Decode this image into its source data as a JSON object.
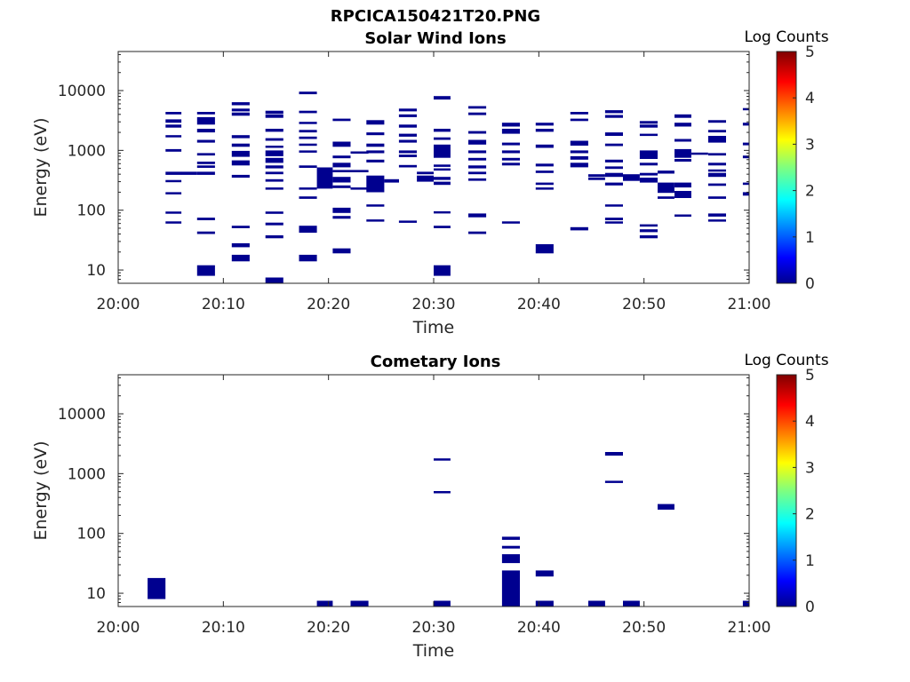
{
  "figure_title": "RPCICA150421T20.PNG",
  "chart_data": [
    {
      "type": "heatmap",
      "title": "Solar Wind Ions",
      "xlabel": "Time",
      "ylabel": "Energy (eV)",
      "x_ticks": [
        "20:00",
        "20:10",
        "20:20",
        "20:30",
        "20:40",
        "20:50",
        "21:00"
      ],
      "xlim": [
        0,
        60
      ],
      "y_scale": "log",
      "y_ticks": [
        "10",
        "100",
        "1000",
        "10000"
      ],
      "ylim": [
        6,
        45000
      ],
      "colorbar": {
        "label": "Log Counts",
        "ticks": [
          "0",
          "1",
          "2",
          "3",
          "4",
          "5"
        ],
        "range": [
          0,
          5
        ],
        "colormap": "jet"
      },
      "cell_color": "#00008f",
      "cells": [
        [
          4.5,
          6,
          4400,
          4000
        ],
        [
          4.5,
          6,
          3300,
          2900
        ],
        [
          4.5,
          6,
          2700,
          2400
        ],
        [
          4.5,
          6,
          1800,
          1650
        ],
        [
          4.5,
          6,
          1050,
          950
        ],
        [
          4.5,
          6,
          440,
          390
        ],
        [
          4.5,
          6,
          320,
          295
        ],
        [
          4.5,
          6,
          200,
          185
        ],
        [
          4.5,
          6,
          95,
          88
        ],
        [
          4.5,
          6,
          65,
          60
        ],
        [
          6,
          7.5,
          440,
          390
        ],
        [
          7.5,
          9.2,
          4400,
          4000
        ],
        [
          7.5,
          9.2,
          3600,
          2700
        ],
        [
          7.5,
          9.2,
          2300,
          2000
        ],
        [
          7.5,
          9.2,
          1500,
          1350
        ],
        [
          7.5,
          9.2,
          900,
          820
        ],
        [
          7.5,
          9.2,
          650,
          590
        ],
        [
          7.5,
          9.2,
          560,
          510
        ],
        [
          7.5,
          9.2,
          440,
          390
        ],
        [
          7.5,
          9.2,
          75,
          68
        ],
        [
          7.5,
          9.2,
          44,
          40
        ],
        [
          7.5,
          9.2,
          12,
          8
        ],
        [
          10.8,
          12.5,
          6400,
          5700
        ],
        [
          10.8,
          12.5,
          5000,
          4500
        ],
        [
          10.8,
          12.5,
          4300,
          3800
        ],
        [
          10.8,
          12.5,
          1800,
          1600
        ],
        [
          10.8,
          12.5,
          1300,
          1150
        ],
        [
          10.8,
          12.5,
          980,
          780
        ],
        [
          10.8,
          12.5,
          680,
          560
        ],
        [
          10.8,
          12.5,
          390,
          350
        ],
        [
          10.8,
          12.5,
          55,
          50
        ],
        [
          10.8,
          12.5,
          28,
          24
        ],
        [
          10.8,
          12.5,
          18,
          14
        ],
        [
          14,
          15.7,
          4600,
          4100
        ],
        [
          14,
          15.7,
          4000,
          3500
        ],
        [
          14,
          15.7,
          2300,
          2050
        ],
        [
          14,
          15.7,
          1600,
          1450
        ],
        [
          14,
          15.7,
          1200,
          1100
        ],
        [
          14,
          15.7,
          1000,
          800
        ],
        [
          14,
          15.7,
          750,
          620
        ],
        [
          14,
          15.7,
          560,
          500
        ],
        [
          14,
          15.7,
          440,
          400
        ],
        [
          14,
          15.7,
          330,
          300
        ],
        [
          14,
          15.7,
          240,
          220
        ],
        [
          14,
          15.7,
          95,
          87
        ],
        [
          14,
          15.7,
          62,
          56
        ],
        [
          14,
          15.7,
          38,
          34
        ],
        [
          14,
          15.7,
          7.5,
          6
        ],
        [
          17.2,
          18.9,
          9600,
          8700
        ],
        [
          17.2,
          18.9,
          4600,
          4200
        ],
        [
          17.2,
          18.9,
          3000,
          2750
        ],
        [
          17.2,
          18.9,
          2200,
          2000
        ],
        [
          17.2,
          18.9,
          1700,
          1550
        ],
        [
          17.2,
          18.9,
          1300,
          1200
        ],
        [
          17.2,
          18.9,
          1000,
          920
        ],
        [
          17.2,
          18.9,
          560,
          510
        ],
        [
          17.2,
          18.9,
          240,
          220
        ],
        [
          17.2,
          18.9,
          170,
          155
        ],
        [
          17.2,
          18.9,
          55,
          42
        ],
        [
          17.2,
          18.9,
          18,
          14
        ],
        [
          18.9,
          20.4,
          520,
          230
        ],
        [
          20.4,
          22.1,
          3400,
          3100
        ],
        [
          20.4,
          22.1,
          1400,
          1150
        ],
        [
          20.4,
          22.1,
          820,
          740
        ],
        [
          20.4,
          22.1,
          620,
          520
        ],
        [
          20.4,
          22.1,
          470,
          430
        ],
        [
          20.4,
          22.1,
          360,
          290
        ],
        [
          20.4,
          22.1,
          260,
          235
        ],
        [
          20.4,
          22.1,
          110,
          90
        ],
        [
          20.4,
          22.1,
          80,
          72
        ],
        [
          20.4,
          22.1,
          23,
          19
        ],
        [
          22.1,
          23.8,
          960,
          880
        ],
        [
          22.1,
          23.8,
          470,
          430
        ],
        [
          22.1,
          23.8,
          240,
          220
        ],
        [
          23.6,
          25.3,
          3200,
          2700
        ],
        [
          23.6,
          25.3,
          2000,
          1800
        ],
        [
          23.6,
          25.3,
          1300,
          1150
        ],
        [
          23.6,
          25.3,
          1000,
          900
        ],
        [
          23.6,
          25.3,
          700,
          630
        ],
        [
          23.6,
          25.3,
          380,
          200
        ],
        [
          23.6,
          25.3,
          125,
          115
        ],
        [
          23.6,
          25.3,
          70,
          65
        ],
        [
          25.3,
          26.7,
          330,
          290
        ],
        [
          26.7,
          28.4,
          5000,
          4500
        ],
        [
          26.7,
          28.4,
          4000,
          3600
        ],
        [
          26.7,
          28.4,
          2700,
          2400
        ],
        [
          26.7,
          28.4,
          1900,
          1700
        ],
        [
          26.7,
          28.4,
          1500,
          1350
        ],
        [
          26.7,
          28.4,
          1000,
          900
        ],
        [
          26.7,
          28.4,
          850,
          770
        ],
        [
          26.7,
          28.4,
          570,
          520
        ],
        [
          26.7,
          28.4,
          67,
          64
        ],
        [
          28.4,
          30,
          440,
          400
        ],
        [
          28.4,
          30,
          380,
          300
        ],
        [
          30,
          31.6,
          8100,
          7100
        ],
        [
          30,
          31.6,
          2300,
          2050
        ],
        [
          30,
          31.6,
          1650,
          1500
        ],
        [
          30,
          31.6,
          1250,
          750
        ],
        [
          30,
          31.6,
          580,
          530
        ],
        [
          30,
          31.6,
          500,
          460
        ],
        [
          30,
          31.6,
          360,
          320
        ],
        [
          30,
          31.6,
          300,
          265
        ],
        [
          30,
          31.6,
          96,
          88
        ],
        [
          30,
          31.6,
          55,
          50
        ],
        [
          30,
          31.6,
          12,
          8
        ],
        [
          33.3,
          35,
          5500,
          5000
        ],
        [
          33.3,
          35,
          4300,
          3900
        ],
        [
          33.3,
          35,
          2100,
          1900
        ],
        [
          33.3,
          35,
          1500,
          1250
        ],
        [
          33.3,
          35,
          1000,
          900
        ],
        [
          33.3,
          35,
          750,
          680
        ],
        [
          33.3,
          35,
          560,
          500
        ],
        [
          33.3,
          35,
          440,
          400
        ],
        [
          33.3,
          35,
          340,
          310
        ],
        [
          33.3,
          35,
          88,
          76
        ],
        [
          33.3,
          35,
          44,
          40
        ],
        [
          36.5,
          38.2,
          2900,
          2500
        ],
        [
          36.5,
          38.2,
          2300,
          1900
        ],
        [
          36.5,
          38.2,
          1350,
          1220
        ],
        [
          36.5,
          38.2,
          1000,
          900
        ],
        [
          36.5,
          38.2,
          750,
          680
        ],
        [
          36.5,
          38.2,
          620,
          560
        ],
        [
          36.5,
          38.2,
          65,
          60
        ],
        [
          39.7,
          41.4,
          2900,
          2600
        ],
        [
          39.7,
          41.4,
          2300,
          2050
        ],
        [
          39.7,
          41.4,
          1250,
          1100
        ],
        [
          39.7,
          41.4,
          600,
          540
        ],
        [
          39.7,
          41.4,
          460,
          420
        ],
        [
          39.7,
          41.4,
          290,
          265
        ],
        [
          39.7,
          41.4,
          240,
          220
        ],
        [
          39.7,
          41.4,
          27,
          19
        ],
        [
          43,
          44.7,
          4400,
          4000
        ],
        [
          43,
          44.7,
          3400,
          3100
        ],
        [
          43,
          44.7,
          1450,
          1200
        ],
        [
          43,
          44.7,
          1000,
          900
        ],
        [
          43,
          44.7,
          800,
          700
        ],
        [
          43,
          44.7,
          620,
          520
        ],
        [
          43,
          44.7,
          52,
          46
        ],
        [
          44.7,
          46.3,
          400,
          360
        ],
        [
          44.7,
          46.3,
          350,
          320
        ],
        [
          46.3,
          48,
          4700,
          4200
        ],
        [
          46.3,
          48,
          3900,
          3500
        ],
        [
          46.3,
          48,
          2000,
          1750
        ],
        [
          46.3,
          48,
          1300,
          1180
        ],
        [
          46.3,
          48,
          700,
          630
        ],
        [
          46.3,
          48,
          540,
          490
        ],
        [
          46.3,
          48,
          420,
          360
        ],
        [
          46.3,
          48,
          290,
          260
        ],
        [
          46.3,
          48,
          125,
          115
        ],
        [
          46.3,
          48,
          75,
          68
        ],
        [
          46.3,
          48,
          65,
          60
        ],
        [
          48,
          49.6,
          400,
          310
        ],
        [
          49.6,
          51.3,
          3100,
          2800
        ],
        [
          49.6,
          51.3,
          2700,
          2400
        ],
        [
          49.6,
          51.3,
          1900,
          1750
        ],
        [
          49.6,
          51.3,
          1000,
          720
        ],
        [
          49.6,
          51.3,
          620,
          560
        ],
        [
          49.6,
          51.3,
          420,
          380
        ],
        [
          49.6,
          51.3,
          350,
          290
        ],
        [
          49.6,
          51.3,
          58,
          53
        ],
        [
          49.6,
          51.3,
          48,
          43
        ],
        [
          49.6,
          51.3,
          38,
          34
        ],
        [
          51.3,
          52.9,
          460,
          410
        ],
        [
          51.3,
          52.9,
          290,
          195
        ],
        [
          51.3,
          52.9,
          170,
          155
        ],
        [
          52.9,
          54.5,
          4000,
          3500
        ],
        [
          52.9,
          54.5,
          2900,
          2500
        ],
        [
          52.9,
          54.5,
          1550,
          1400
        ],
        [
          52.9,
          54.5,
          1050,
          750
        ],
        [
          52.9,
          54.5,
          720,
          650
        ],
        [
          52.9,
          54.5,
          290,
          240
        ],
        [
          52.9,
          54.5,
          210,
          160
        ],
        [
          52.9,
          54.5,
          85,
          78
        ],
        [
          54.5,
          56.1,
          920,
          850
        ],
        [
          56.1,
          57.8,
          3200,
          2900
        ],
        [
          56.1,
          57.8,
          2200,
          2000
        ],
        [
          56.1,
          57.8,
          1750,
          1350
        ],
        [
          56.1,
          57.8,
          900,
          820
        ],
        [
          56.1,
          57.8,
          620,
          560
        ],
        [
          56.1,
          57.8,
          480,
          440
        ],
        [
          56.1,
          57.8,
          420,
          360
        ],
        [
          56.1,
          57.8,
          280,
          255
        ],
        [
          56.1,
          57.8,
          170,
          155
        ],
        [
          56.1,
          57.8,
          88,
          78
        ],
        [
          56.1,
          57.8,
          70,
          65
        ],
        [
          59.4,
          60.5,
          5100,
          4700
        ],
        [
          59.4,
          60.5,
          2900,
          2600
        ],
        [
          59.4,
          60.5,
          1350,
          1220
        ],
        [
          59.4,
          60.5,
          820,
          740
        ],
        [
          59.4,
          60.5,
          290,
          265
        ],
        [
          59.4,
          60.5,
          200,
          175
        ]
      ]
    },
    {
      "type": "heatmap",
      "title": "Cometary Ions",
      "xlabel": "Time",
      "ylabel": "Energy (eV)",
      "x_ticks": [
        "20:00",
        "20:10",
        "20:20",
        "20:30",
        "20:40",
        "20:50",
        "21:00"
      ],
      "xlim": [
        0,
        60
      ],
      "y_scale": "log",
      "y_ticks": [
        "10",
        "100",
        "1000",
        "10000"
      ],
      "ylim": [
        6,
        45000
      ],
      "colorbar": {
        "label": "Log Counts",
        "ticks": [
          "0",
          "1",
          "2",
          "3",
          "4",
          "5"
        ],
        "range": [
          0,
          5
        ],
        "colormap": "jet"
      },
      "cell_color": "#00008f",
      "cells": [
        [
          2.8,
          4.5,
          18,
          8
        ],
        [
          18.9,
          20.4,
          7.5,
          6
        ],
        [
          22.1,
          23.8,
          7.5,
          6
        ],
        [
          30,
          31.6,
          1800,
          1650
        ],
        [
          30,
          31.6,
          510,
          470
        ],
        [
          30,
          31.6,
          7.5,
          6
        ],
        [
          36.5,
          38.2,
          88,
          78
        ],
        [
          36.5,
          38.2,
          62,
          56
        ],
        [
          36.5,
          38.2,
          45,
          32
        ],
        [
          36.5,
          38.2,
          24,
          6
        ],
        [
          39.7,
          41.4,
          24,
          19
        ],
        [
          39.7,
          41.4,
          7.5,
          6
        ],
        [
          44.7,
          46.3,
          7.5,
          6
        ],
        [
          46.3,
          48,
          2300,
          2000
        ],
        [
          46.3,
          48,
          760,
          700
        ],
        [
          48,
          49.6,
          7.5,
          6
        ],
        [
          51.3,
          52.9,
          310,
          250
        ],
        [
          59.4,
          60.5,
          7.5,
          6
        ]
      ]
    }
  ]
}
